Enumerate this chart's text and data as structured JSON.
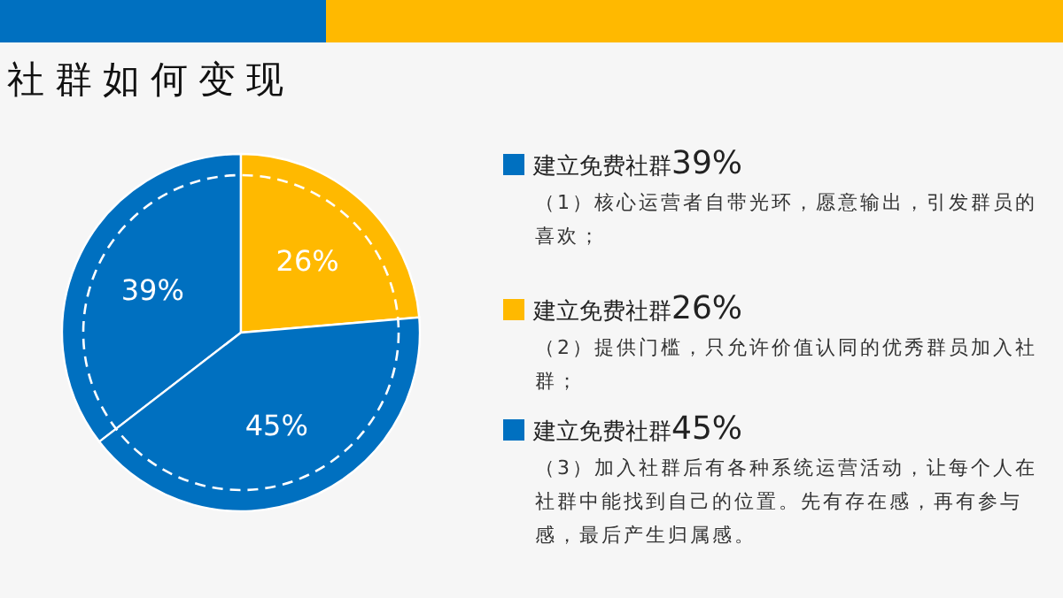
{
  "chart_data": {
    "type": "pie",
    "title": "社群如何变现",
    "categories": [
      "建立免费社群",
      "建立免费社群",
      "建立免费社群"
    ],
    "values": [
      39,
      26,
      45
    ],
    "value_labels": [
      "39%",
      "26%",
      "45%"
    ],
    "colors": [
      "#0070c0",
      "#ffb900",
      "#0070c0"
    ],
    "legend": "right",
    "annotations": [
      "（1）核心运营者自带光环，愿意输出，引发群员的喜欢；",
      "（2）提供门槛，只允许价值认同的优秀群员加入社群；",
      "（3）加入社群后有各种系统运营活动，让每个人在社群中能找到自己的位置。先有存在感，再有参与感，最后产生归属感。"
    ]
  }
}
